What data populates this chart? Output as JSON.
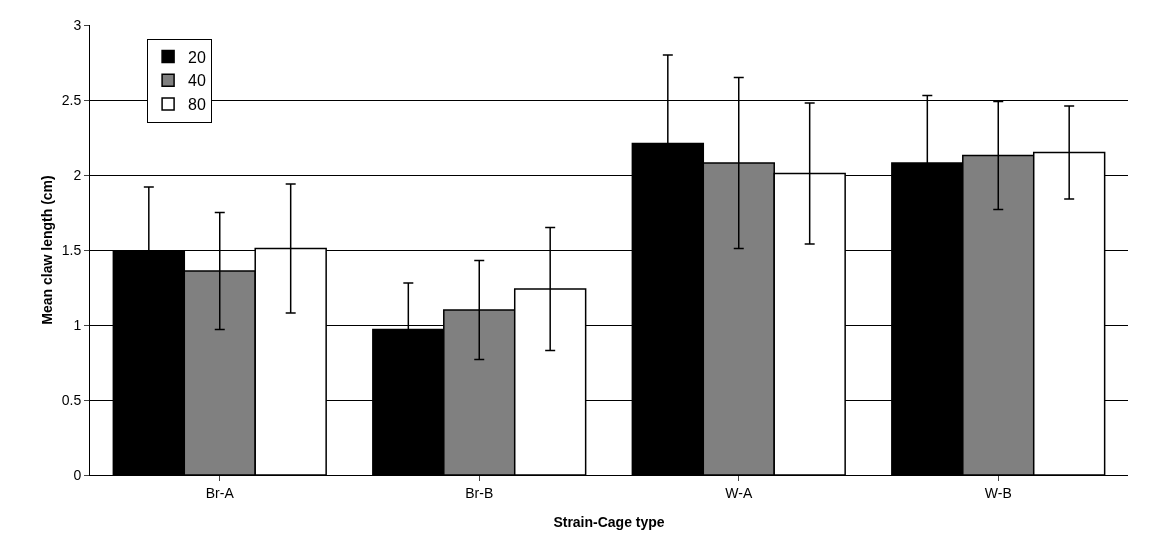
{
  "chart_data": {
    "type": "bar",
    "xlabel": "Strain-Cage type",
    "ylabel": "Mean claw length (cm)",
    "categories": [
      "Br-A",
      "Br-B",
      "W-A",
      "W-B"
    ],
    "series": [
      {
        "name": "20",
        "color": "#000000",
        "values": [
          1.49,
          0.97,
          2.21,
          2.08
        ],
        "errors": [
          0.43,
          0.31,
          0.59,
          0.45
        ]
      },
      {
        "name": "40",
        "color": "#808080",
        "values": [
          1.36,
          1.1,
          2.08,
          2.13
        ],
        "errors": [
          0.39,
          0.33,
          0.57,
          0.36
        ]
      },
      {
        "name": "80",
        "color": "#ffffff",
        "values": [
          1.51,
          1.24,
          2.01,
          2.15
        ],
        "errors": [
          0.43,
          0.41,
          0.47,
          0.31
        ]
      }
    ],
    "ylim": [
      0,
      3
    ],
    "yticks": [
      0,
      0.5,
      1,
      1.5,
      2,
      2.5,
      3
    ],
    "grid": "y",
    "legend": "top left"
  }
}
